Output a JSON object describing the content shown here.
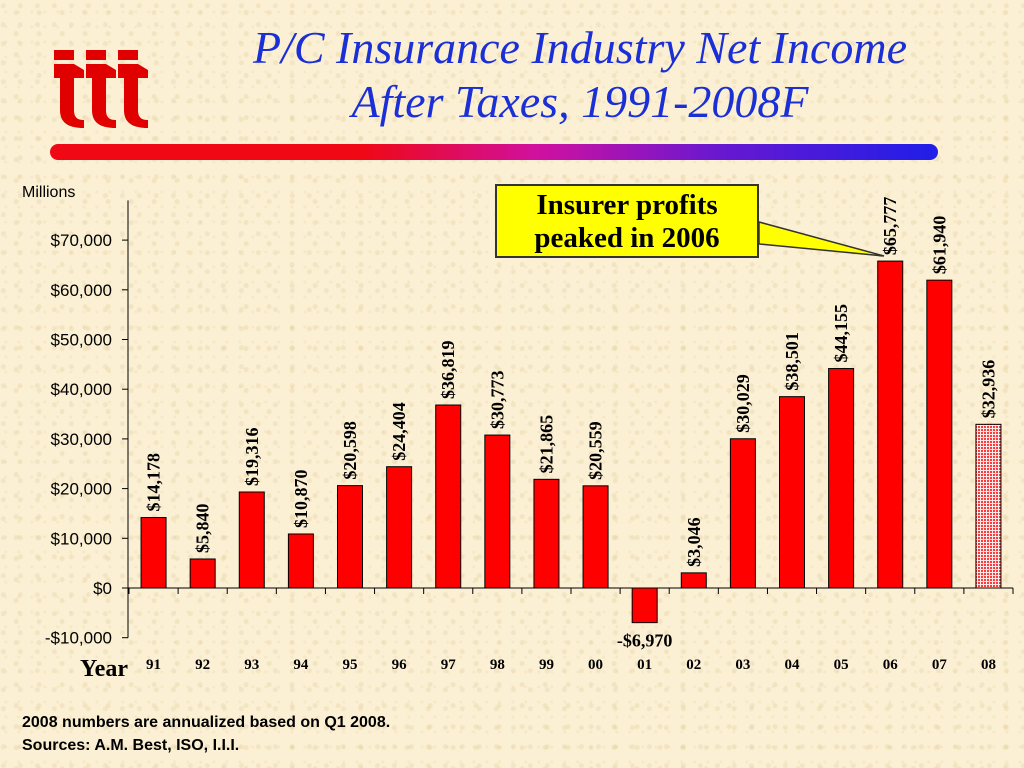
{
  "slide": {
    "title_line1": "P/C Insurance Industry Net Income",
    "title_line2": "After Taxes, 1991-2008F",
    "callout": "Insurer profits peaked in 2006",
    "footnote1": "2008 numbers are annualized based on Q1 2008.",
    "footnote2": "Sources: A.M. Best, ISO, I.I.I.",
    "colors": {
      "title": "#1b2fd6",
      "bar": "#ff0000",
      "forecast_bar": "#f4b0b0",
      "callout_bg": "#ffff00",
      "logo": "#e00000"
    },
    "icons": {
      "logo": "iii-logo"
    }
  },
  "chart_data": {
    "type": "bar",
    "title": "P/C Insurance Industry Net Income After Taxes, 1991-2008F",
    "ylabel": "Millions",
    "xlabel": "Year",
    "categories": [
      "91",
      "92",
      "93",
      "94",
      "95",
      "96",
      "97",
      "98",
      "99",
      "00",
      "01",
      "02",
      "03",
      "04",
      "05",
      "06",
      "07",
      "08"
    ],
    "values": [
      14178,
      5840,
      19316,
      10870,
      20598,
      24404,
      36819,
      30773,
      21865,
      20559,
      -6970,
      3046,
      30029,
      38501,
      44155,
      65777,
      61940,
      32936
    ],
    "value_labels": [
      "$14,178",
      "$5,840",
      "$19,316",
      "$10,870",
      "$20,598",
      "$24,404",
      "$36,819",
      "$30,773",
      "$21,865",
      "$20,559",
      "-$6,970",
      "$3,046",
      "$30,029",
      "$38,501",
      "$44,155",
      "$65,777",
      "$61,940",
      "$32,936"
    ],
    "forecast_categories": [
      "08"
    ],
    "ylim": [
      -10000,
      80000
    ],
    "yticks": [
      -10000,
      0,
      10000,
      20000,
      30000,
      40000,
      50000,
      60000,
      70000
    ],
    "ytick_labels": [
      "-$10,000",
      "$0",
      "$10,000",
      "$20,000",
      "$30,000",
      "$40,000",
      "$50,000",
      "$60,000",
      "$70,000"
    ],
    "grid": false,
    "legend": "none"
  }
}
